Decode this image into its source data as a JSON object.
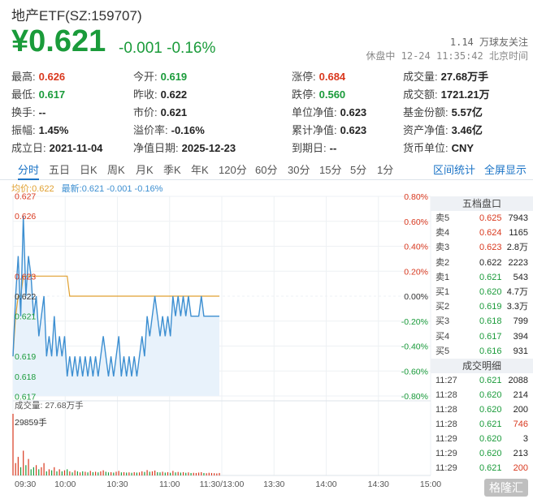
{
  "header": {
    "title": "地产ETF(SZ:159707)",
    "price": "¥0.621",
    "change": "-0.001 -0.16%",
    "follow": "1.14 万球友关注",
    "status": "休盘中 12-24 11:35:42 北京时间"
  },
  "stats": [
    {
      "label": "最高:",
      "value": "0.626",
      "tone": "red"
    },
    {
      "label": "今开:",
      "value": "0.619",
      "tone": "green"
    },
    {
      "label": "涨停:",
      "value": "0.684",
      "tone": "red"
    },
    {
      "label": "成交量:",
      "value": "27.68万手",
      "tone": ""
    },
    {
      "label": "最低:",
      "value": "0.617",
      "tone": "green"
    },
    {
      "label": "昨收:",
      "value": "0.622",
      "tone": ""
    },
    {
      "label": "跌停:",
      "value": "0.560",
      "tone": "green"
    },
    {
      "label": "成交额:",
      "value": "1721.21万",
      "tone": ""
    },
    {
      "label": "换手:",
      "value": "--",
      "tone": ""
    },
    {
      "label": "市价:",
      "value": "0.621",
      "tone": ""
    },
    {
      "label": "单位净值:",
      "value": "0.623",
      "tone": ""
    },
    {
      "label": "基金份额:",
      "value": "5.57亿",
      "tone": ""
    },
    {
      "label": "振幅:",
      "value": "1.45%",
      "tone": ""
    },
    {
      "label": "溢价率:",
      "value": "-0.16%",
      "tone": ""
    },
    {
      "label": "累计净值:",
      "value": "0.623",
      "tone": ""
    },
    {
      "label": "资产净值:",
      "value": "3.46亿",
      "tone": ""
    },
    {
      "label": "成立日:",
      "value": "2021-11-04",
      "tone": ""
    },
    {
      "label": "净值日期:",
      "value": "2025-12-23",
      "tone": ""
    },
    {
      "label": "到期日:",
      "value": "--",
      "tone": ""
    },
    {
      "label": "货币单位:",
      "value": "CNY",
      "tone": ""
    }
  ],
  "tabs": [
    "分时",
    "五日",
    "日K",
    "周K",
    "月K",
    "季K",
    "年K",
    "120分",
    "60分",
    "30分",
    "15分",
    "5分",
    "1分"
  ],
  "active_tab": 0,
  "tab_links": [
    "区间统计",
    "全屏显示"
  ],
  "legend": {
    "avg_label": "均价:",
    "avg_value": "0.622",
    "latest_label": "最新:",
    "latest_value": "0.621 -0.001 -0.16%"
  },
  "volume_title": "成交量: 27.68万手",
  "volume_max_label": "29859手",
  "colors": {
    "up": "#d9381e",
    "down": "#1a9b3a",
    "price_line": "#3d8fd1",
    "avg_line": "#e0a030",
    "area_fill": "#e8f2fb"
  },
  "chart_data": {
    "type": "line",
    "price_ticks": [
      "0.627",
      "0.626",
      "0.623",
      "0.622",
      "0.621",
      "0.619",
      "0.618",
      "0.617"
    ],
    "pct_ticks": [
      "0.80%",
      "0.60%",
      "0.40%",
      "0.20%",
      "0.00%",
      "-0.20%",
      "-0.40%",
      "-0.60%",
      "-0.80%"
    ],
    "time_ticks": [
      "09:30",
      "10:00",
      "10:30",
      "11:00",
      "11:30/13:00",
      "13:30",
      "14:00",
      "14:30",
      "15:00"
    ],
    "ylim": [
      0.617,
      0.627
    ],
    "prev_close": 0.622,
    "price": [
      0.619,
      0.622,
      0.624,
      0.621,
      0.626,
      0.622,
      0.624,
      0.623,
      0.621,
      0.622,
      0.62,
      0.621,
      0.622,
      0.619,
      0.62,
      0.619,
      0.621,
      0.619,
      0.62,
      0.619,
      0.62,
      0.618,
      0.619,
      0.618,
      0.619,
      0.618,
      0.619,
      0.618,
      0.619,
      0.618,
      0.619,
      0.618,
      0.619,
      0.618,
      0.619,
      0.62,
      0.619,
      0.618,
      0.619,
      0.618,
      0.619,
      0.62,
      0.618,
      0.619,
      0.618,
      0.619,
      0.618,
      0.619,
      0.618,
      0.619,
      0.62,
      0.619,
      0.621,
      0.62,
      0.621,
      0.622,
      0.621,
      0.62,
      0.621,
      0.62,
      0.621,
      0.62,
      0.622,
      0.621,
      0.622,
      0.621,
      0.622,
      0.621,
      0.622,
      0.621,
      0.621,
      0.621,
      0.621,
      0.622,
      0.621,
      0.621,
      0.621,
      0.621,
      0.621,
      0.621,
      0.621
    ],
    "avg": [
      0.619,
      0.621,
      0.622,
      0.622,
      0.623,
      0.623,
      0.623,
      0.623,
      0.623,
      0.623,
      0.623,
      0.623,
      0.623,
      0.623,
      0.623,
      0.623,
      0.623,
      0.623,
      0.623,
      0.623,
      0.623,
      0.623,
      0.622,
      0.622,
      0.622,
      0.622,
      0.622,
      0.622,
      0.622,
      0.622,
      0.622,
      0.622,
      0.622,
      0.622,
      0.622,
      0.622,
      0.622,
      0.622,
      0.622,
      0.622,
      0.622,
      0.622,
      0.622,
      0.622,
      0.622,
      0.622,
      0.622,
      0.622,
      0.622,
      0.622,
      0.622,
      0.622,
      0.622,
      0.622,
      0.622,
      0.622,
      0.622,
      0.622,
      0.622,
      0.622,
      0.622,
      0.622,
      0.622,
      0.622,
      0.622,
      0.622,
      0.622,
      0.622,
      0.622,
      0.622,
      0.622,
      0.622,
      0.622,
      0.622,
      0.622,
      0.622,
      0.622,
      0.622,
      0.622,
      0.622,
      0.622
    ],
    "volume": [
      29859,
      6000,
      9000,
      4000,
      12000,
      5000,
      8000,
      3000,
      4000,
      5000,
      3000,
      4000,
      6000,
      2000,
      3000,
      2500,
      4000,
      2000,
      3000,
      2000,
      2500,
      3000,
      2000,
      1500,
      2500,
      2000,
      1500,
      2000,
      1800,
      1500,
      2200,
      1600,
      1800,
      1500,
      2000,
      2500,
      1800,
      1500,
      1600,
      1400,
      1800,
      2200,
      1500,
      1600,
      1400,
      1500,
      1300,
      1600,
      1400,
      1500,
      2000,
      1700,
      2600,
      1800,
      2000,
      2400,
      1600,
      1500,
      1800,
      1400,
      1600,
      1300,
      2200,
      1500,
      1700,
      1400,
      1600,
      1300,
      1500,
      1200,
      1300,
      1200,
      1400,
      1600,
      1200,
      1100,
      1300,
      1200,
      1100,
      1000,
      1200
    ]
  },
  "order_book": {
    "title": "五档盘口",
    "rows": [
      {
        "label": "卖5",
        "price": "0.625",
        "vol": "7943",
        "tone": "red"
      },
      {
        "label": "卖4",
        "price": "0.624",
        "vol": "1165",
        "tone": "red"
      },
      {
        "label": "卖3",
        "price": "0.623",
        "vol": "2.8万",
        "tone": "red"
      },
      {
        "label": "卖2",
        "price": "0.622",
        "vol": "2223",
        "tone": ""
      },
      {
        "label": "卖1",
        "price": "0.621",
        "vol": "543",
        "tone": "green"
      },
      {
        "label": "买1",
        "price": "0.620",
        "vol": "4.7万",
        "tone": "green"
      },
      {
        "label": "买2",
        "price": "0.619",
        "vol": "3.3万",
        "tone": "green"
      },
      {
        "label": "买3",
        "price": "0.618",
        "vol": "799",
        "tone": "green"
      },
      {
        "label": "买4",
        "price": "0.617",
        "vol": "394",
        "tone": "green"
      },
      {
        "label": "买5",
        "price": "0.616",
        "vol": "931",
        "tone": "green"
      }
    ]
  },
  "trades": {
    "title": "成交明细",
    "rows": [
      {
        "time": "11:27",
        "price": "0.621",
        "vol": "2088",
        "tone": "green",
        "vtone": ""
      },
      {
        "time": "11:28",
        "price": "0.620",
        "vol": "214",
        "tone": "green",
        "vtone": ""
      },
      {
        "time": "11:28",
        "price": "0.620",
        "vol": "200",
        "tone": "green",
        "vtone": ""
      },
      {
        "time": "11:28",
        "price": "0.621",
        "vol": "746",
        "tone": "green",
        "vtone": "red"
      },
      {
        "time": "11:29",
        "price": "0.620",
        "vol": "3",
        "tone": "green",
        "vtone": ""
      },
      {
        "time": "11:29",
        "price": "0.620",
        "vol": "213",
        "tone": "green",
        "vtone": ""
      },
      {
        "time": "11:29",
        "price": "0.621",
        "vol": "200",
        "tone": "green",
        "vtone": "red"
      }
    ]
  },
  "watermark": "格隆汇"
}
